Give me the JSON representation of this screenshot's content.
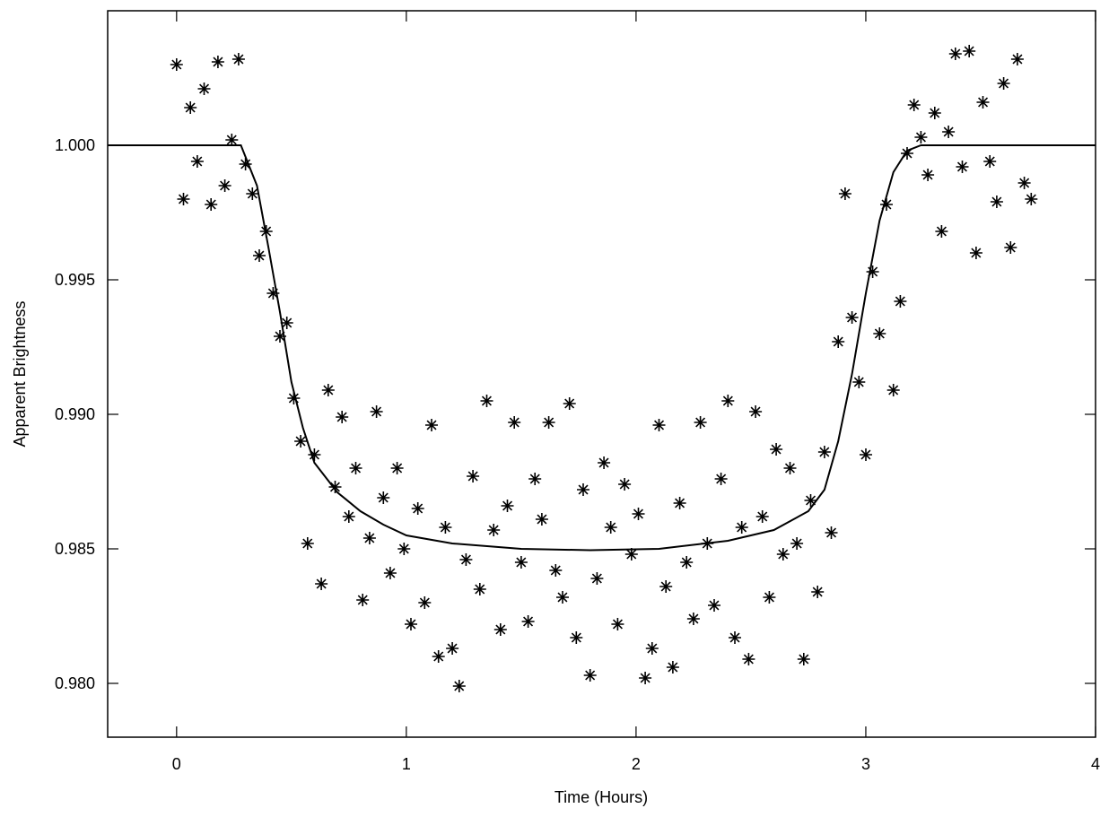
{
  "chart_data": {
    "type": "scatter",
    "xlabel": "Time (Hours)",
    "ylabel": "Apparent Brightness",
    "xlim": [
      -0.3,
      4.0
    ],
    "xticks": [
      0,
      1,
      2,
      3,
      4
    ],
    "ylim": [
      0.978,
      1.005
    ],
    "yticks": [
      {
        "value": 0.98,
        "label": "0.980"
      },
      {
        "value": 0.985,
        "label": "0.985"
      },
      {
        "value": 0.99,
        "label": "0.990"
      },
      {
        "value": 0.995,
        "label": "0.995"
      },
      {
        "value": 1.0,
        "label": "1.000"
      }
    ],
    "color": "#000000",
    "x": [
      0,
      0.03,
      0.06,
      0.09,
      0.12,
      0.15,
      0.18,
      0.21,
      0.24,
      0.27,
      0.3,
      0.33,
      0.36,
      0.39,
      0.42,
      0.45,
      0.48,
      0.51,
      0.54,
      0.57,
      0.6,
      0.63,
      0.66,
      0.69,
      0.72,
      0.75,
      0.78,
      0.81,
      0.84,
      0.87,
      0.9,
      0.93,
      0.96,
      0.99,
      1.02,
      1.05,
      1.08,
      1.11,
      1.14,
      1.17,
      1.2,
      1.23,
      1.26,
      1.29,
      1.32,
      1.35,
      1.38,
      1.41,
      1.44,
      1.47,
      1.5,
      1.53,
      1.56,
      1.59,
      1.62,
      1.65,
      1.68,
      1.71,
      1.74,
      1.77,
      1.8,
      1.83,
      1.86,
      1.89,
      1.92,
      1.95,
      1.98,
      2.01,
      2.04,
      2.07,
      2.1,
      2.13,
      2.16,
      2.19,
      2.22,
      2.25,
      2.28,
      2.31,
      2.34,
      2.37,
      2.4,
      2.43,
      2.46,
      2.49,
      2.52,
      2.55,
      2.58,
      2.61,
      2.64,
      2.67,
      2.7,
      2.73,
      2.76,
      2.79,
      2.82,
      2.85,
      2.88,
      2.91,
      2.94,
      2.97,
      3.0,
      3.03,
      3.06,
      3.09,
      3.12,
      3.15,
      3.18,
      3.21,
      3.24,
      3.27,
      3.3,
      3.33,
      3.36,
      3.39,
      3.42,
      3.45,
      3.48,
      3.51,
      3.54,
      3.57,
      3.6,
      3.63,
      3.66,
      3.69,
      3.72
    ],
    "values": [
      1.003,
      0.998,
      1.0014,
      0.9994,
      1.0021,
      0.9978,
      1.0031,
      0.9985,
      1.0002,
      1.0032,
      0.9993,
      0.9982,
      0.9959,
      0.9968,
      0.9945,
      0.9929,
      0.9934,
      0.9906,
      0.989,
      0.9852,
      0.9885,
      0.9837,
      0.9909,
      0.9873,
      0.9899,
      0.9862,
      0.988,
      0.9831,
      0.9854,
      0.9901,
      0.9869,
      0.9841,
      0.988,
      0.985,
      0.9822,
      0.9865,
      0.983,
      0.9896,
      0.981,
      0.9858,
      0.9813,
      0.9799,
      0.9846,
      0.9877,
      0.9835,
      0.9905,
      0.9857,
      0.982,
      0.9866,
      0.9897,
      0.9845,
      0.9823,
      0.9876,
      0.9861,
      0.9897,
      0.9842,
      0.9832,
      0.9904,
      0.9817,
      0.9872,
      0.9803,
      0.9839,
      0.9882,
      0.9858,
      0.9822,
      0.9874,
      0.9848,
      0.9863,
      0.9802,
      0.9813,
      0.9896,
      0.9836,
      0.9806,
      0.9867,
      0.9845,
      0.9824,
      0.9897,
      0.9852,
      0.9829,
      0.9876,
      0.9905,
      0.9817,
      0.9858,
      0.9809,
      0.9901,
      0.9862,
      0.9832,
      0.9887,
      0.9848,
      0.988,
      0.9852,
      0.9809,
      0.9868,
      0.9834,
      0.9886,
      0.9856,
      0.9927,
      0.9982,
      0.9936,
      0.9912,
      0.9885,
      0.9953,
      0.993,
      0.9978,
      0.9909,
      0.9942,
      0.9997,
      1.0015,
      1.0003,
      0.9989,
      1.0012,
      0.9968,
      1.0005,
      1.0034,
      0.9992,
      1.0035,
      0.996,
      1.0016,
      0.9994,
      0.9979,
      1.0023,
      0.9962,
      1.0032,
      0.9986,
      0.998
    ],
    "model": {
      "x": [
        -0.3,
        0.28,
        0.35,
        0.4,
        0.45,
        0.5,
        0.55,
        0.6,
        0.7,
        0.8,
        0.9,
        1.0,
        1.2,
        1.5,
        1.8,
        2.1,
        2.4,
        2.6,
        2.75,
        2.82,
        2.88,
        2.94,
        3.0,
        3.06,
        3.12,
        3.18,
        3.24,
        4.0
      ],
      "values": [
        1.0,
        1.0,
        0.9985,
        0.9962,
        0.9938,
        0.9912,
        0.9895,
        0.9882,
        0.9871,
        0.9864,
        0.9859,
        0.9855,
        0.9852,
        0.985,
        0.98495,
        0.985,
        0.9853,
        0.9857,
        0.9864,
        0.9872,
        0.989,
        0.9915,
        0.9945,
        0.9972,
        0.999,
        0.9998,
        1.0,
        1.0
      ],
      "color": "#000000"
    }
  }
}
